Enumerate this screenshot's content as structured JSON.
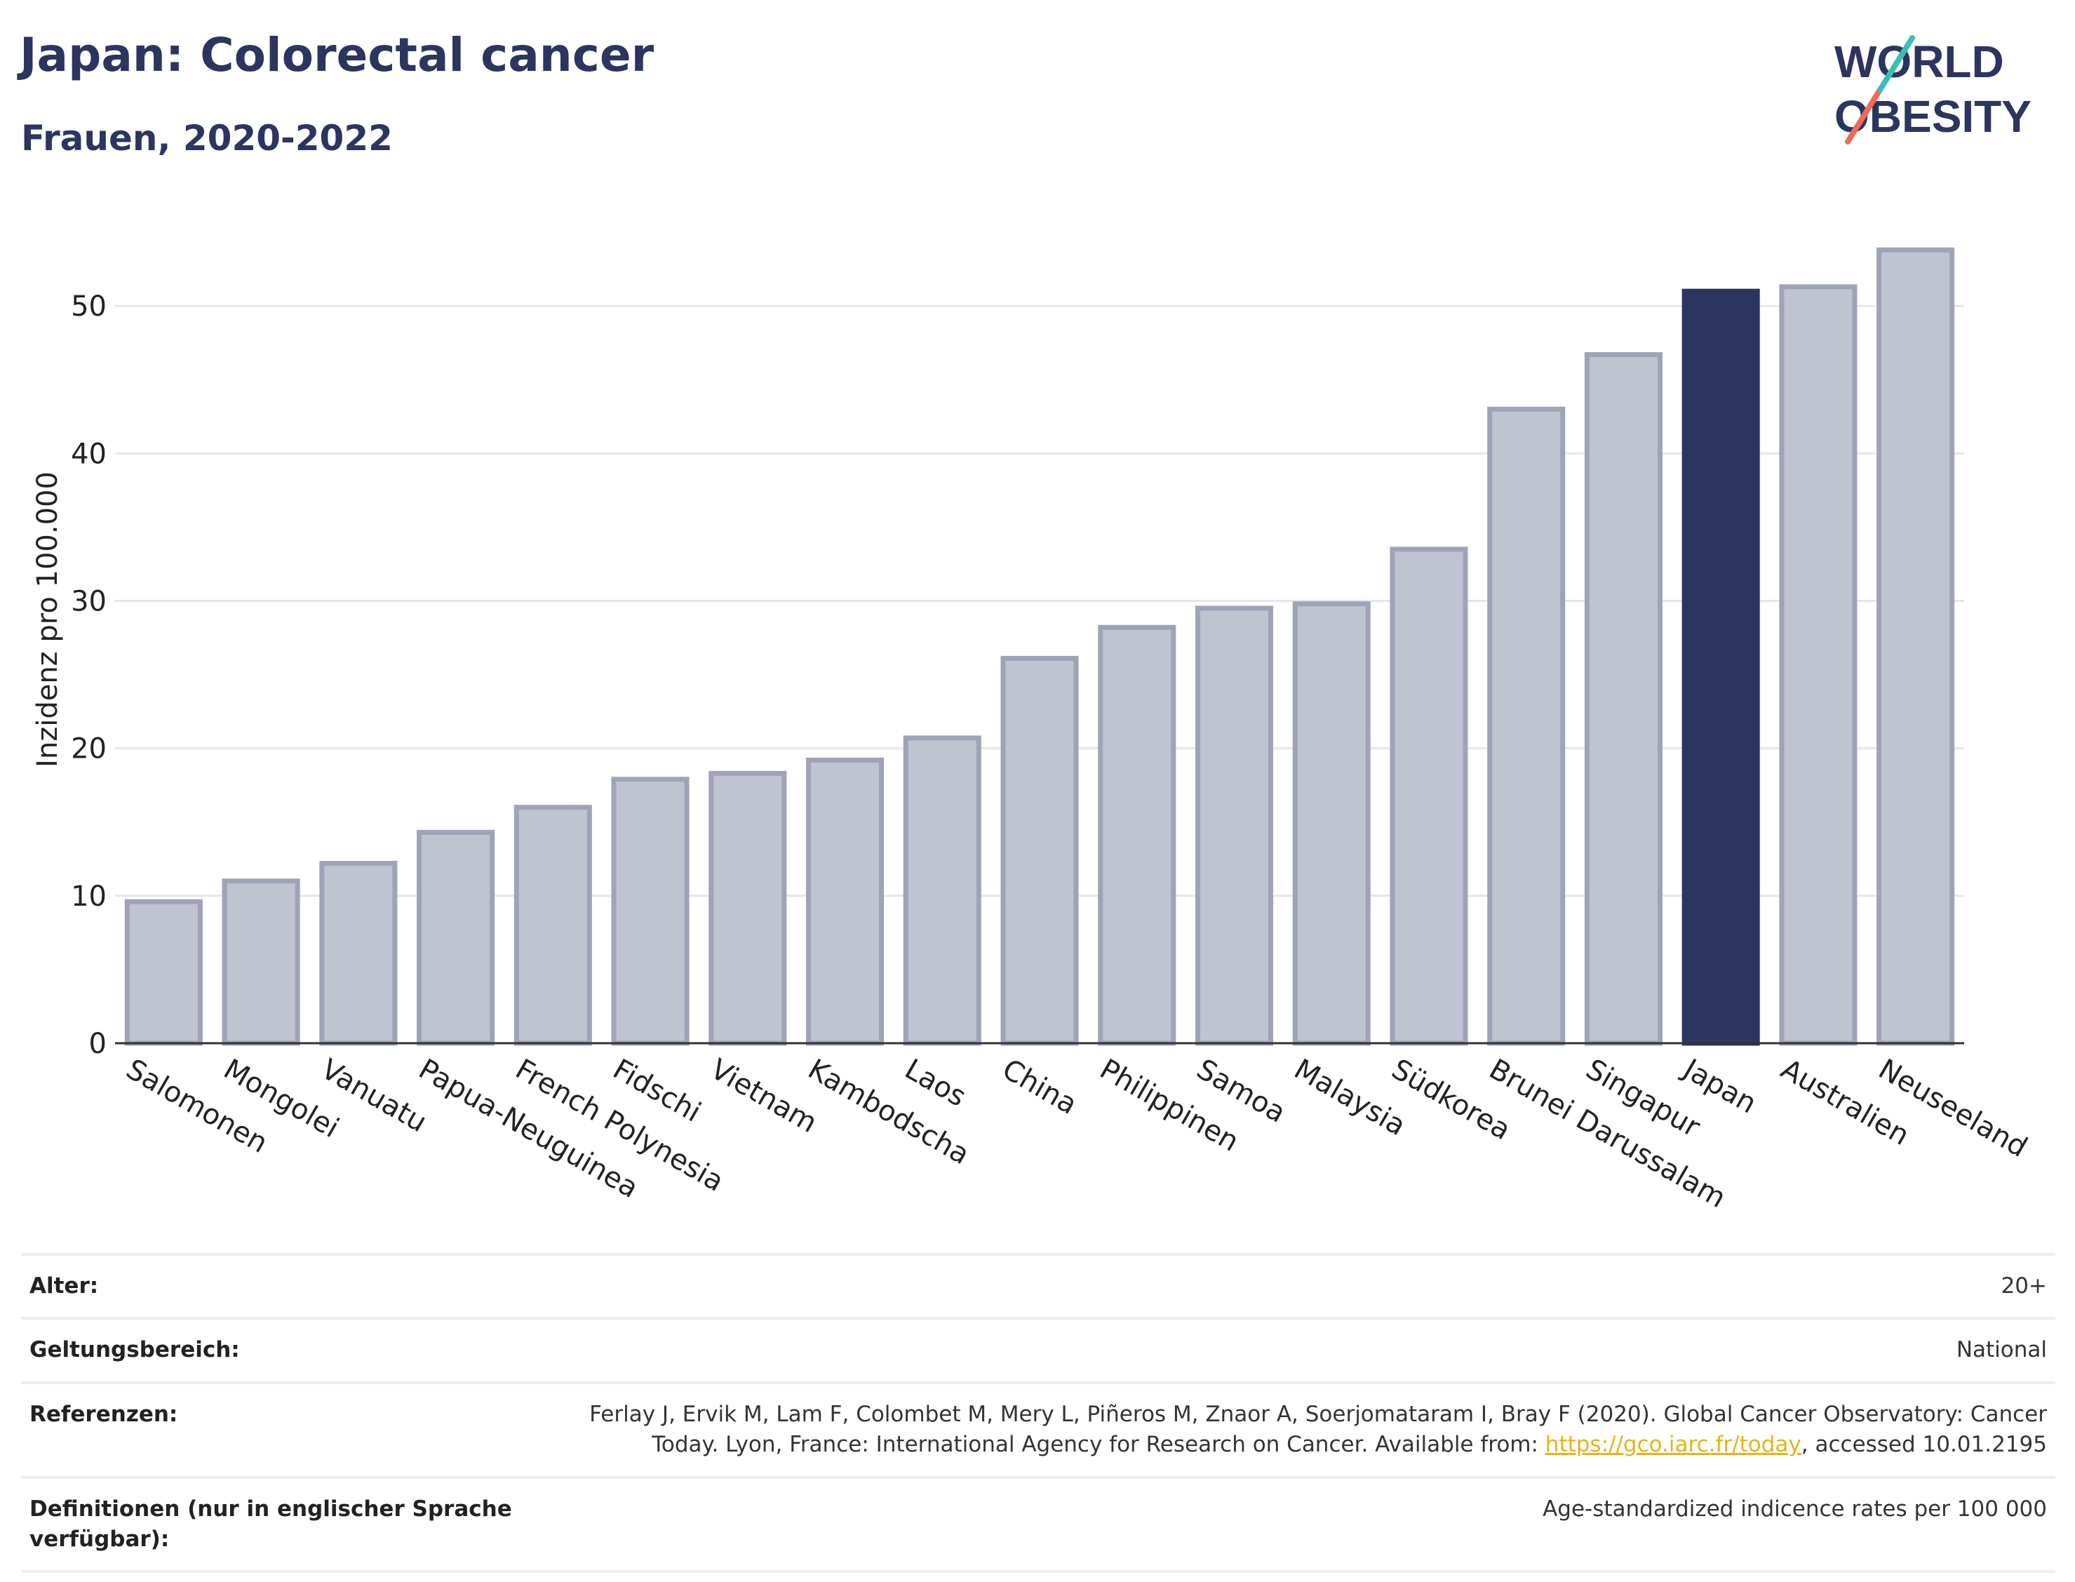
{
  "title": "Japan: Colorectal cancer",
  "subtitle": "Frauen, 2020-2022",
  "logo": {
    "line1": "WORLD",
    "line2": "OBESITY"
  },
  "colors": {
    "highlight": "#2b3560",
    "bar": "#c0c3d0",
    "bar_stroke": "#9ea3b8",
    "title": "#2b3560",
    "link": "#e8b316"
  },
  "chart_data": {
    "type": "bar",
    "categories": [
      "Salomonen",
      "Mongolei",
      "Vanuatu",
      "Papua-Neuguinea",
      "French Polynesia",
      "Fidschi",
      "Vietnam",
      "Kambodscha",
      "Laos",
      "China",
      "Philippinen",
      "Samoa",
      "Malaysia",
      "Südkorea",
      "Brunei Darussalam",
      "Singapur",
      "Japan",
      "Australien",
      "Neuseeland"
    ],
    "values": [
      9.6,
      11.0,
      12.2,
      14.3,
      16.0,
      17.9,
      18.3,
      19.2,
      20.7,
      26.1,
      28.2,
      29.5,
      29.8,
      33.5,
      43.0,
      46.7,
      51.0,
      51.3,
      53.8
    ],
    "highlight": "Japan",
    "ylabel": "Inzidenz pro 100.000",
    "yticks": [
      0,
      10,
      20,
      30,
      40,
      50
    ],
    "ylim": [
      0,
      56
    ],
    "grid": true
  },
  "meta": [
    {
      "label": "Alter:",
      "value": "20+"
    },
    {
      "label": "Geltungsbereich:",
      "value": "National"
    },
    {
      "label": "Referenzen:",
      "value_pre": "Ferlay J, Ervik M, Lam F, Colombet M, Mery L, Piñeros M, Znaor A, Soerjomataram I, Bray F (2020). Global Cancer Observatory: Cancer Today. Lyon, France: International Agency for Research on Cancer. Available from: ",
      "link": "https://gco.iarc.fr/today",
      "value_post": ", accessed 10.01.2195"
    },
    {
      "label": "Definitionen (nur in englischer Sprache verfügbar):",
      "value": "Age-standardized indicence rates per 100 000"
    }
  ]
}
